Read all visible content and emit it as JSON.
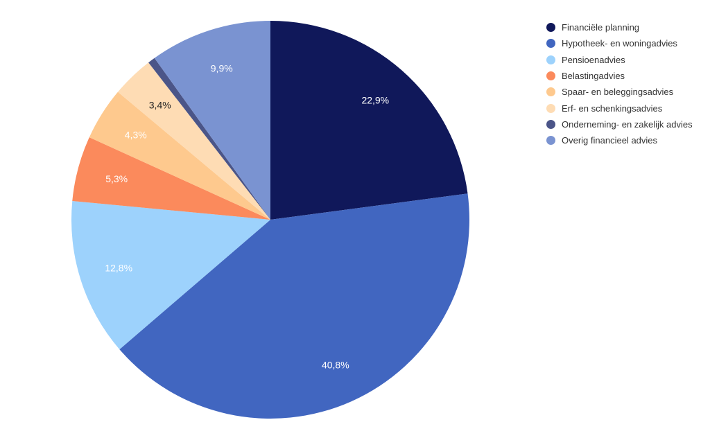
{
  "chart_data": {
    "type": "pie",
    "title": "",
    "start": "top, clockwise",
    "legend_position": "top-right",
    "slices": [
      {
        "label": "Financiële planning",
        "value": 22.9,
        "display": "22,9%",
        "color": "#10185a",
        "text_color": "#ffffff"
      },
      {
        "label": "Hypotheek- en woningadvies",
        "value": 40.8,
        "display": "40,8%",
        "color": "#4166c0",
        "text_color": "#ffffff"
      },
      {
        "label": "Pensioenadvies",
        "value": 12.8,
        "display": "12,8%",
        "color": "#9dd2fc",
        "text_color": "#ffffff"
      },
      {
        "label": "Belastingadvies",
        "value": 5.3,
        "display": "5,3%",
        "color": "#fb8a5c",
        "text_color": "#ffffff"
      },
      {
        "label": "Spaar- en beleggingsadvies",
        "value": 4.3,
        "display": "4,3%",
        "color": "#fec98e",
        "text_color": "#ffffff"
      },
      {
        "label": "Erf- en schenkingsadvies",
        "value": 3.4,
        "display": "3,4%",
        "color": "#fedcb4",
        "text_color": "#222222"
      },
      {
        "label": "Onderneming- en zakelijk advies",
        "value": 0.6,
        "display": "",
        "color": "#4b5588",
        "text_color": "#ffffff"
      },
      {
        "label": "Overig financieel advies",
        "value": 9.9,
        "display": "9,9%",
        "color": "#7a93d1",
        "text_color": "#ffffff"
      }
    ]
  }
}
